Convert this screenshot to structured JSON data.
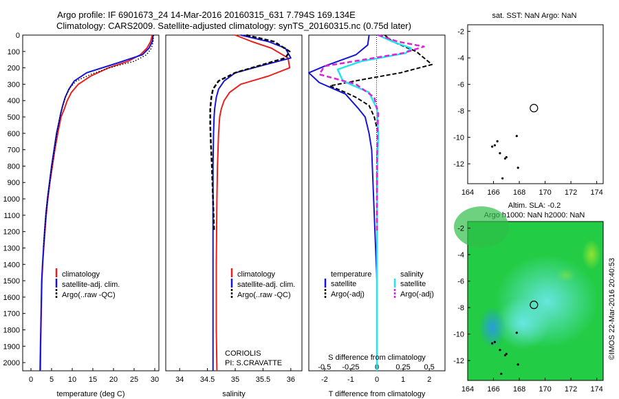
{
  "title_line1": "Argo profile: IF 6901673_24 14-Mar-2016 20160315_631 7.794S 169.134E",
  "title_line2": "Climatology: CARS2009. Satellite-adjusted climatology: synTS_20160315.nc (0.75d later)",
  "depth_ticks": [
    "0",
    "100",
    "200",
    "300",
    "400",
    "500",
    "600",
    "700",
    "800",
    "900",
    "1000",
    "1100",
    "1200",
    "1300",
    "1400",
    "1500",
    "1600",
    "1700",
    "1800",
    "1900",
    "2000"
  ],
  "colors": {
    "climatology": "#e8201c",
    "satellite": "#1414d8",
    "argo": "#000000",
    "cyan": "#22e6ee",
    "magenta": "#e020d8",
    "ocean": "#22cc44",
    "land": "#000000"
  },
  "chart_data": [
    {
      "type": "line",
      "name": "temperature-profile",
      "xlabel": "temperature (deg C)",
      "ylabel": "",
      "xlim": [
        -2,
        31
      ],
      "ylim": [
        2050,
        0
      ],
      "xticks": [
        "0",
        "5",
        "10",
        "15",
        "20",
        "25",
        "30"
      ],
      "legend": [
        "climatology",
        "satellite-adj. clim.",
        "Argo(..raw -QC)"
      ],
      "series": [
        {
          "name": "climatology",
          "x": [
            29.4,
            29.0,
            28.1,
            26.5,
            23.5,
            18.8,
            14.5,
            11.5,
            9.8,
            8.8,
            8.1,
            7.3,
            6.5,
            5.8,
            5.2,
            4.6,
            4.1,
            3.7,
            3.4,
            3.1,
            2.85,
            2.65,
            2.5,
            2.35,
            2.3
          ],
          "y": [
            0,
            40,
            80,
            120,
            160,
            200,
            250,
            300,
            350,
            400,
            450,
            500,
            600,
            700,
            800,
            900,
            1000,
            1100,
            1200,
            1300,
            1400,
            1500,
            1700,
            1900,
            2050
          ]
        },
        {
          "name": "satellite-adj. clim.",
          "x": [
            29.6,
            29.4,
            28.6,
            27.0,
            21.0,
            13.5,
            10.5,
            9.2,
            8.3,
            7.7,
            7.2,
            6.8,
            6.2,
            5.6,
            5.0,
            4.5,
            4.0,
            3.6,
            3.3,
            3.05,
            2.8,
            2.6,
            2.45,
            2.3,
            2.2
          ],
          "y": [
            0,
            40,
            80,
            120,
            170,
            230,
            280,
            330,
            380,
            430,
            480,
            530,
            600,
            700,
            800,
            900,
            1000,
            1100,
            1200,
            1300,
            1400,
            1500,
            1700,
            1900,
            2050
          ]
        },
        {
          "name": "Argo(..raw -QC)",
          "x": [
            29.7,
            29.6,
            29.2,
            28.0,
            25.0,
            19.0,
            14.5,
            11.0,
            9.5,
            8.5,
            7.7,
            7.0,
            6.3,
            5.7,
            5.1,
            4.5,
            4.0,
            3.6,
            3.3,
            3.0
          ],
          "y": [
            0,
            40,
            80,
            120,
            160,
            200,
            240,
            280,
            320,
            370,
            430,
            500,
            600,
            700,
            800,
            900,
            1000,
            1100,
            1200,
            1300
          ]
        }
      ]
    },
    {
      "type": "line",
      "name": "salinity-profile",
      "xlabel": "salinity",
      "ylabel": "",
      "xlim": [
        33.75,
        36.2
      ],
      "ylim": [
        2050,
        0
      ],
      "xticks": [
        "34",
        "34.5",
        "35",
        "35.5",
        "36"
      ],
      "legend": [
        "climatology",
        "satellite-adj. clim.",
        "Argo(..raw -QC)"
      ],
      "annotation": [
        "CORIOLIS",
        "PI: S.CRAVATTE"
      ],
      "series": [
        {
          "name": "climatology",
          "x": [
            35.0,
            35.3,
            35.65,
            35.95,
            35.98,
            35.6,
            35.1,
            34.9,
            34.8,
            34.75,
            34.72,
            34.7,
            34.68,
            34.67,
            34.66,
            34.66,
            34.67
          ],
          "y": [
            0,
            40,
            80,
            140,
            200,
            250,
            300,
            350,
            400,
            450,
            500,
            600,
            800,
            1000,
            1400,
            1800,
            2050
          ]
        },
        {
          "name": "satellite-adj. clim.",
          "x": [
            35.1,
            35.6,
            35.9,
            36.0,
            35.55,
            35.0,
            34.8,
            34.7,
            34.66,
            34.63,
            34.62,
            34.61,
            34.6,
            34.6,
            34.6,
            34.6
          ],
          "y": [
            0,
            40,
            80,
            140,
            180,
            230,
            280,
            330,
            380,
            450,
            500,
            600,
            800,
            1000,
            1500,
            2050
          ]
        },
        {
          "name": "Argo(..raw -QC)",
          "x": [
            35.2,
            35.7,
            35.98,
            35.9,
            35.5,
            35.0,
            34.7,
            34.6,
            34.57,
            34.55,
            34.55,
            34.56,
            34.58,
            34.6,
            34.62
          ],
          "y": [
            0,
            40,
            100,
            140,
            180,
            230,
            280,
            330,
            380,
            450,
            550,
            650,
            800,
            1000,
            1200
          ]
        }
      ]
    },
    {
      "type": "line",
      "name": "difference-profile",
      "xlabel": "T difference from climatology",
      "xlabel_top": "S difference from climatology",
      "xlim": [
        -2.6,
        2.6
      ],
      "ylim": [
        2050,
        0
      ],
      "xticks_bottom": [
        "-2",
        "-1",
        "0",
        "1",
        "2"
      ],
      "xticks_top": [
        "-0.5",
        "-0.25",
        "0",
        "0.25",
        "0.5"
      ],
      "legend_titles": [
        "temperature",
        "salinity"
      ],
      "legend": [
        "satellite",
        "Argo(-adj)",
        "satellite",
        "Argo(-adj)"
      ],
      "series": [
        {
          "name": "temperature satellite",
          "x": [
            -0.3,
            -0.35,
            -0.8,
            -2.0,
            -2.6,
            -2.2,
            -1.2,
            -0.7,
            -0.45,
            -0.3,
            -0.2,
            -0.15,
            -0.1,
            -0.05,
            0,
            0,
            0
          ],
          "y": [
            0,
            60,
            120,
            190,
            230,
            290,
            360,
            450,
            500,
            600,
            700,
            900,
            1100,
            1300,
            1500,
            1800,
            2050
          ]
        },
        {
          "name": "temperature Argo(-adj)",
          "x": [
            0.3,
            0.6,
            1.5,
            2.1,
            0.9,
            -0.5,
            -1.8,
            -1.2,
            -0.8,
            -0.3,
            -0.1,
            0.05,
            0,
            0
          ],
          "y": [
            0,
            40,
            100,
            180,
            230,
            270,
            310,
            350,
            380,
            430,
            500,
            600,
            800,
            1300
          ]
        },
        {
          "name": "salinity satellite",
          "x": [
            0.05,
            0.6,
            1.3,
            1.1,
            -0.6,
            -1.5,
            -1.3,
            -0.3,
            0,
            0.05,
            0.02,
            0.01,
            0.0,
            0
          ],
          "y": [
            0,
            40,
            80,
            110,
            160,
            210,
            280,
            350,
            450,
            600,
            800,
            1000,
            1500,
            2050
          ]
        },
        {
          "name": "salinity Argo(-adj)",
          "x": [
            0.05,
            0.8,
            1.8,
            1.0,
            -0.5,
            -2.0,
            -2.2,
            -0.8,
            -0.1,
            0.05,
            0.02,
            0.0,
            0
          ],
          "y": [
            0,
            40,
            70,
            110,
            150,
            190,
            240,
            300,
            380,
            480,
            600,
            800,
            1200
          ]
        }
      ]
    },
    {
      "type": "scatter",
      "name": "sat-sst-map",
      "title": "sat. SST: NaN  Argo: NaN",
      "xlim": [
        164,
        174.5
      ],
      "ylim": [
        -13.5,
        -1.5
      ],
      "xticks": [
        "164",
        "166",
        "168",
        "170",
        "172",
        "174"
      ],
      "yticks": [
        "-2",
        "-4",
        "-6",
        "-8",
        "-10",
        "-12"
      ],
      "profile_location": {
        "lon": 169.134,
        "lat": -7.794
      },
      "land_points": [
        [
          165.9,
          -10.7
        ],
        [
          166.1,
          -10.6
        ],
        [
          166.3,
          -10.3
        ],
        [
          166.5,
          -11.2
        ],
        [
          166.9,
          -11.6
        ],
        [
          167.0,
          -11.5
        ],
        [
          167.8,
          -9.9
        ],
        [
          166.7,
          -13.1
        ],
        [
          167.9,
          -12.3
        ]
      ]
    },
    {
      "type": "heatmap",
      "name": "altimetry-map",
      "title_line1": "Altim. SLA: -0.2",
      "title_line2": "Argo h1000: NaN  h2000: NaN",
      "xlim": [
        164,
        174.5
      ],
      "ylim": [
        -13.5,
        -1.5
      ],
      "xticks": [
        "164",
        "166",
        "168",
        "170",
        "172",
        "174"
      ],
      "yticks": [
        "-2",
        "-4",
        "-6",
        "-8",
        "-10",
        "-12"
      ],
      "profile_location": {
        "lon": 169.134,
        "lat": -7.794
      },
      "land_points": [
        [
          165.9,
          -10.7
        ],
        [
          166.1,
          -10.6
        ],
        [
          166.5,
          -11.2
        ],
        [
          166.9,
          -11.6
        ],
        [
          167.0,
          -11.5
        ],
        [
          167.8,
          -9.9
        ],
        [
          166.6,
          -13.0
        ],
        [
          167.9,
          -12.3
        ]
      ]
    }
  ],
  "watermark": "©IMOS 22-Mar-2016 20:40:53"
}
